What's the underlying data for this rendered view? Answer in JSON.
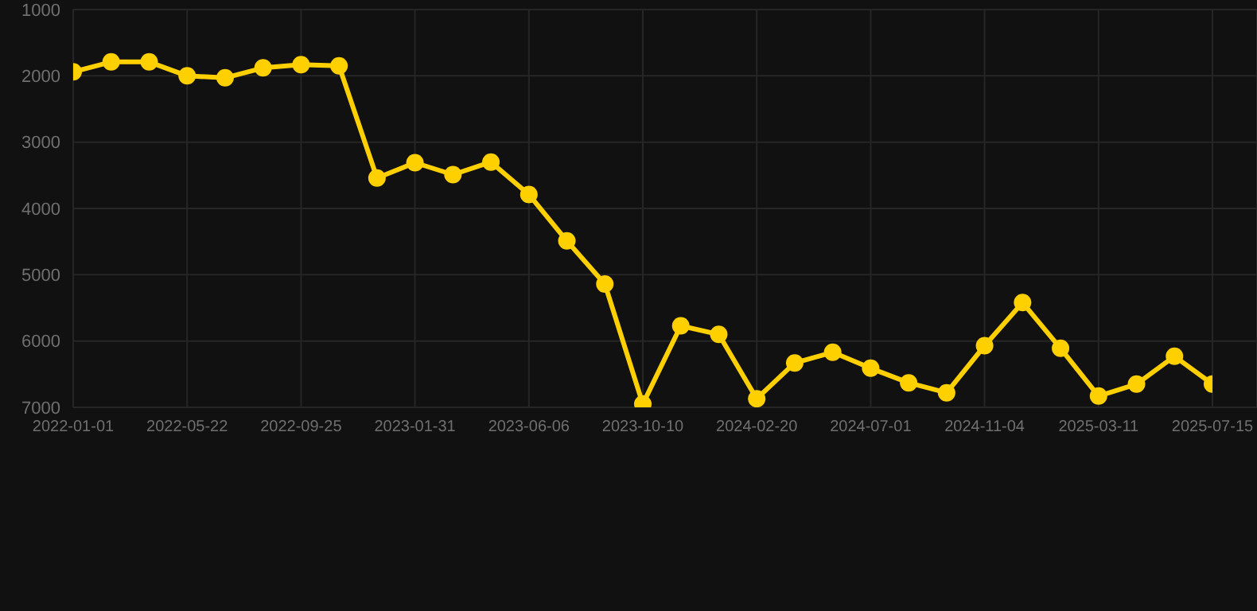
{
  "chart_data": {
    "type": "line",
    "categories": [
      "2022-01-01",
      null,
      null,
      "2022-05-22",
      null,
      null,
      "2022-09-25",
      null,
      null,
      "2023-01-31",
      null,
      null,
      "2023-06-06",
      null,
      null,
      "2023-10-10",
      null,
      null,
      "2024-02-20",
      null,
      null,
      "2024-07-01",
      null,
      null,
      "2024-11-04",
      null,
      null,
      "2025-03-11",
      null,
      null,
      "2025-07-15"
    ],
    "series": [
      {
        "color": "#ffd000",
        "values": [
          1940,
          1790,
          1790,
          2000,
          2030,
          1880,
          1830,
          1850,
          3540,
          3310,
          3490,
          3300,
          3790,
          4490,
          5140,
          6950,
          5770,
          5900,
          6870,
          6330,
          6170,
          6410,
          6630,
          6780,
          6070,
          5420,
          6110,
          6830,
          6650,
          6230,
          6650
        ]
      }
    ],
    "ylim": [
      7000,
      1000
    ],
    "yticks": [
      1000,
      2000,
      3000,
      4000,
      5000,
      6000,
      7000
    ],
    "grid": true,
    "marker": "circle",
    "line_style": "solid"
  }
}
